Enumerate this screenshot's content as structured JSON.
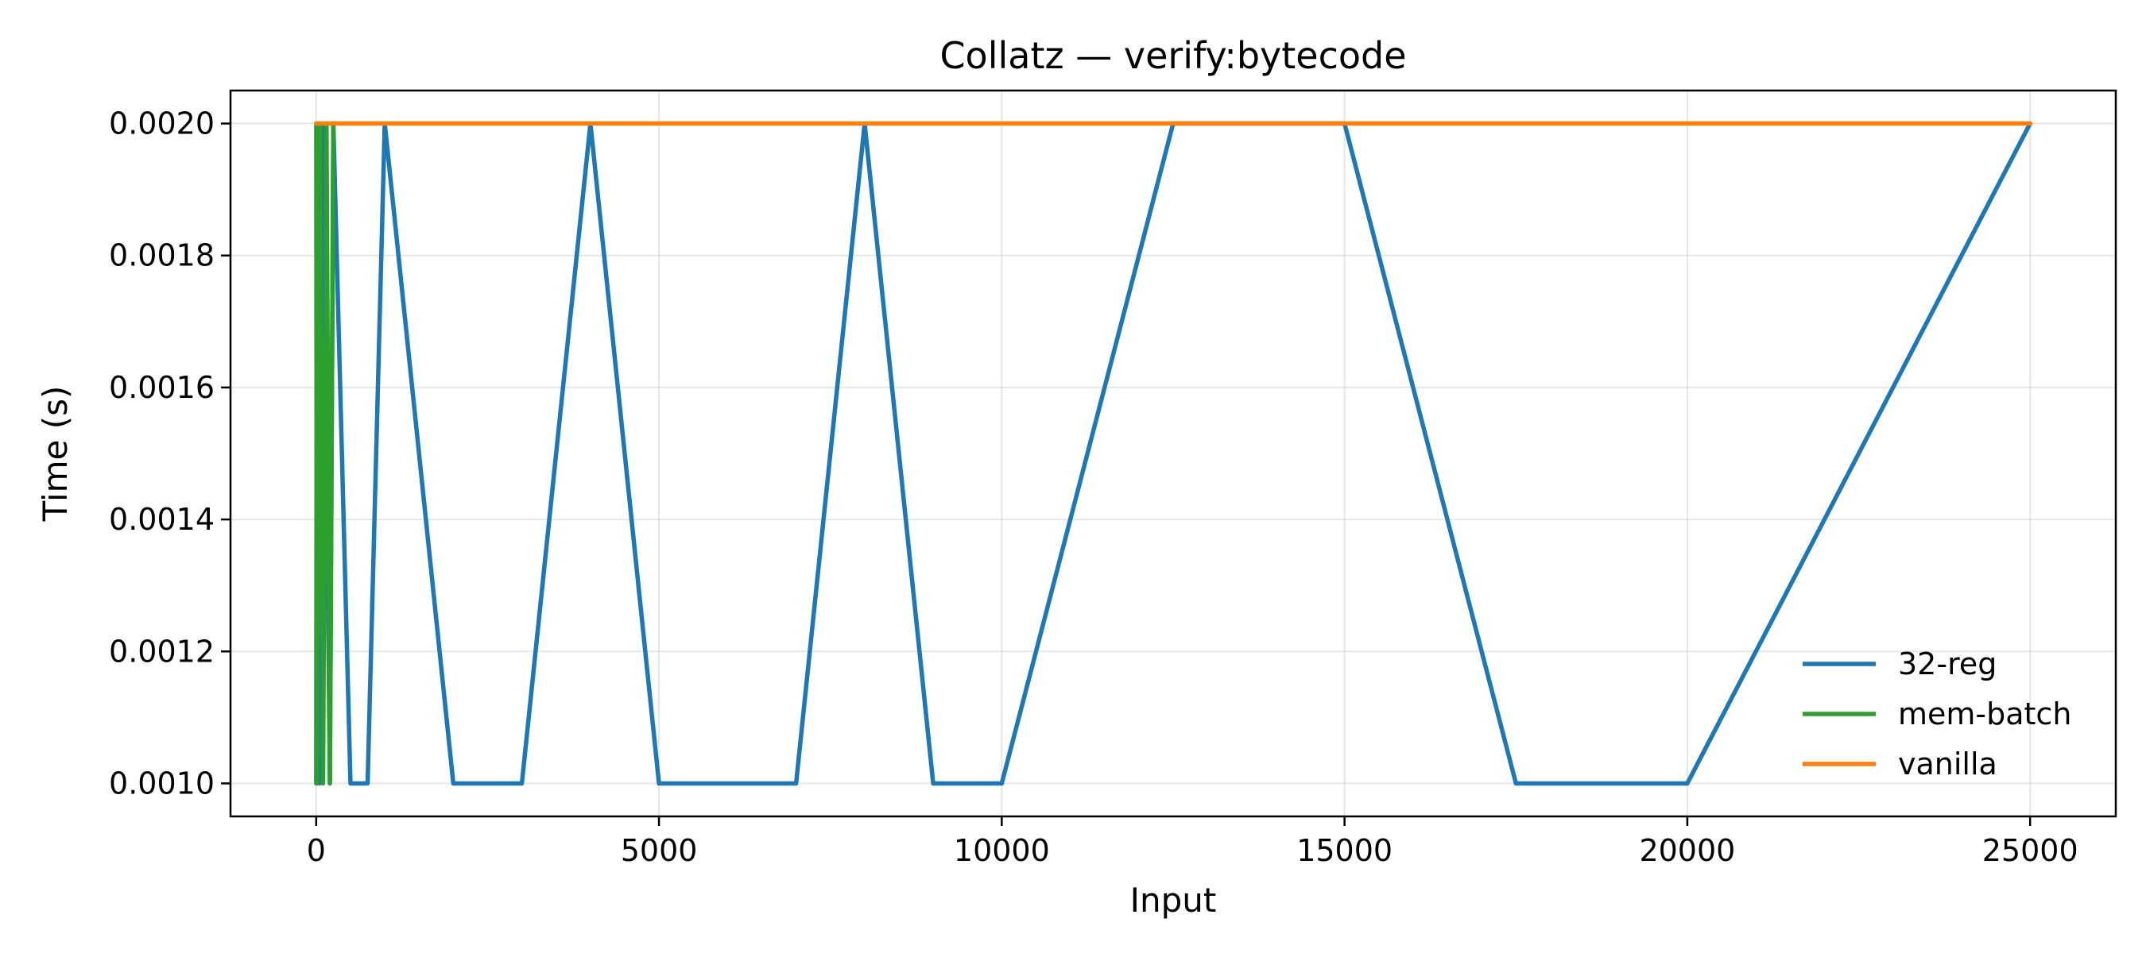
{
  "chart_data": {
    "type": "line",
    "title": "Collatz — verify:bytecode",
    "xlabel": "Input",
    "ylabel": "Time (s)",
    "xlim": [
      -1250,
      26250
    ],
    "ylim": [
      0.00095,
      0.00205
    ],
    "xticks": [
      0,
      5000,
      10000,
      15000,
      20000,
      25000
    ],
    "xtick_labels": [
      "0",
      "5000",
      "10000",
      "15000",
      "20000",
      "25000"
    ],
    "yticks": [
      0.001,
      0.0012,
      0.0014,
      0.0016,
      0.0018,
      0.002
    ],
    "ytick_labels": [
      "0.0010",
      "0.0012",
      "0.0014",
      "0.0016",
      "0.0018",
      "0.0020"
    ],
    "grid": true,
    "legend_position": "lower-right",
    "series": [
      {
        "name": "32-reg",
        "color": "#1f77b4",
        "x": [
          1,
          10,
          50,
          100,
          200,
          250,
          500,
          750,
          1000,
          2000,
          3000,
          4000,
          5000,
          7000,
          8000,
          9000,
          10000,
          12500,
          15000,
          17500,
          20000,
          25000
        ],
        "y": [
          0.001,
          0.002,
          0.001,
          0.002,
          0.001,
          0.002,
          0.001,
          0.001,
          0.002,
          0.001,
          0.001,
          0.002,
          0.001,
          0.001,
          0.002,
          0.001,
          0.001,
          0.002,
          0.002,
          0.001,
          0.001,
          0.002
        ]
      },
      {
        "name": "mem-batch",
        "color": "#2ca02c",
        "x": [
          1,
          10,
          50,
          100,
          150,
          200,
          250
        ],
        "y": [
          0.002,
          0.001,
          0.002,
          0.001,
          0.002,
          0.001,
          0.002
        ]
      },
      {
        "name": "vanilla",
        "color": "#ff7f0e",
        "x": [
          1,
          10,
          100,
          1000,
          5000,
          10000,
          15000,
          20000,
          25000
        ],
        "y": [
          0.002,
          0.002,
          0.002,
          0.002,
          0.002,
          0.002,
          0.002,
          0.002,
          0.002
        ]
      }
    ]
  }
}
